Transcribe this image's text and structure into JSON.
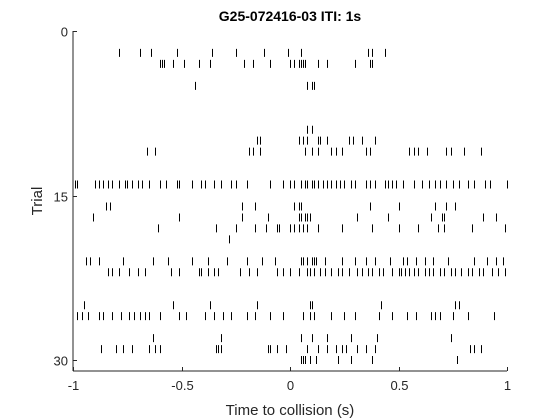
{
  "chart_data": {
    "type": "scatter",
    "subtype": "raster",
    "title": "G25-072416-03 ITI: 1s",
    "xlabel": "Time to collision (s)",
    "ylabel": "Trial",
    "xlim": [
      -1,
      1
    ],
    "ylim": [
      0,
      31
    ],
    "y_reversed": true,
    "xticks": [
      -1,
      -0.5,
      0,
      0.5,
      1
    ],
    "xtick_labels": [
      "-1",
      "-0.5",
      "0",
      "0.5",
      "1"
    ],
    "yticks": [
      0,
      15,
      30
    ],
    "ytick_labels": [
      "0",
      "15",
      "30"
    ],
    "grid": false,
    "mark_color": "#000000",
    "trials": [
      {
        "trial": 2,
        "times": [
          -0.79,
          -0.69,
          -0.64,
          -0.52,
          -0.36,
          -0.25,
          -0.12,
          -0.01,
          0.05,
          0.36,
          0.38,
          0.44
        ]
      },
      {
        "trial": 3,
        "times": [
          -0.6,
          -0.59,
          -0.58,
          -0.54,
          -0.49,
          -0.42,
          -0.37,
          -0.21,
          -0.17,
          -0.09,
          0.0,
          0.02,
          0.04,
          0.05,
          0.06,
          0.07,
          0.13,
          0.17,
          0.3,
          0.37,
          0.38
        ]
      },
      {
        "trial": 5,
        "times": [
          -0.44,
          0.08,
          0.1,
          0.11
        ]
      },
      {
        "trial": 9,
        "times": [
          0.08,
          0.1
        ]
      },
      {
        "trial": 10,
        "times": [
          -0.15,
          -0.14,
          0.04,
          0.06,
          0.08,
          0.13,
          0.14,
          0.17,
          0.27,
          0.29,
          0.33,
          0.39
        ]
      },
      {
        "trial": 11,
        "times": [
          -0.66,
          -0.62,
          -0.19,
          -0.17,
          -0.14,
          0.07,
          0.1,
          0.13,
          0.19,
          0.21,
          0.24,
          0.35,
          0.37,
          0.55,
          0.57,
          0.59,
          0.63,
          0.72,
          0.74,
          0.8,
          0.88
        ]
      },
      {
        "trial": 14,
        "times": [
          -0.99,
          -0.98,
          -0.9,
          -0.88,
          -0.86,
          -0.84,
          -0.82,
          -0.79,
          -0.76,
          -0.75,
          -0.73,
          -0.7,
          -0.68,
          -0.65,
          -0.6,
          -0.57,
          -0.52,
          -0.51,
          -0.45,
          -0.41,
          -0.39,
          -0.35,
          -0.32,
          -0.27,
          -0.25,
          -0.2,
          -0.09,
          -0.03,
          0.0,
          0.02,
          0.05,
          0.07,
          0.08,
          0.1,
          0.11,
          0.13,
          0.15,
          0.17,
          0.19,
          0.21,
          0.23,
          0.25,
          0.28,
          0.3,
          0.35,
          0.37,
          0.39,
          0.44,
          0.45,
          0.47,
          0.49,
          0.52,
          0.57,
          0.61,
          0.64,
          0.67,
          0.69,
          0.72,
          0.75,
          0.78,
          0.82,
          0.85,
          0.9,
          0.92,
          1.0
        ]
      },
      {
        "trial": 16,
        "times": [
          -0.85,
          -0.83,
          -0.22,
          -0.16,
          0.02,
          0.04,
          0.05,
          0.37,
          0.5,
          0.67,
          0.72,
          0.76
        ]
      },
      {
        "trial": 17,
        "times": [
          -0.91,
          -0.51,
          -0.22,
          -0.1,
          0.04,
          0.05,
          0.07,
          0.08,
          0.09,
          0.31,
          0.45,
          0.65,
          0.7,
          0.71,
          0.89,
          0.95
        ]
      },
      {
        "trial": 18,
        "times": [
          -0.61,
          -0.34,
          -0.25,
          -0.16,
          -0.11,
          -0.06,
          -0.05,
          0.0,
          0.02,
          0.04,
          0.06,
          0.08,
          0.13,
          0.24,
          0.38,
          0.5,
          0.59,
          0.68,
          0.71,
          0.84,
          0.99
        ]
      },
      {
        "trial": 19,
        "times": [
          -0.28
        ]
      },
      {
        "trial": 21,
        "times": [
          -0.94,
          -0.92,
          -0.88,
          -0.77,
          -0.63,
          -0.56,
          -0.45,
          -0.38,
          -0.29,
          -0.2,
          -0.13,
          -0.07,
          0.05,
          0.06,
          0.08,
          0.1,
          0.11,
          0.12,
          0.16,
          0.24,
          0.3,
          0.35,
          0.39,
          0.46,
          0.52,
          0.54,
          0.58,
          0.62,
          0.66,
          0.73,
          0.85,
          0.91,
          0.95,
          0.98
        ]
      },
      {
        "trial": 22,
        "times": [
          -0.84,
          -0.82,
          -0.79,
          -0.74,
          -0.7,
          -0.67,
          -0.55,
          -0.51,
          -0.42,
          -0.41,
          -0.38,
          -0.35,
          -0.33,
          -0.23,
          -0.19,
          -0.15,
          -0.06,
          -0.03,
          0.0,
          0.04,
          0.08,
          0.09,
          0.11,
          0.14,
          0.16,
          0.19,
          0.22,
          0.24,
          0.27,
          0.31,
          0.33,
          0.36,
          0.38,
          0.41,
          0.43,
          0.47,
          0.5,
          0.51,
          0.53,
          0.55,
          0.57,
          0.59,
          0.62,
          0.64,
          0.66,
          0.69,
          0.71,
          0.74,
          0.76,
          0.79,
          0.82,
          0.84,
          0.87,
          0.89,
          0.93,
          0.96,
          0.99
        ]
      },
      {
        "trial": 25,
        "times": [
          -0.95,
          -0.54,
          -0.37,
          -0.15,
          0.09,
          0.1,
          0.42,
          0.76,
          0.78
        ]
      },
      {
        "trial": 26,
        "times": [
          -0.98,
          -0.96,
          -0.93,
          -0.88,
          -0.86,
          -0.82,
          -0.78,
          -0.74,
          -0.72,
          -0.69,
          -0.67,
          -0.65,
          -0.6,
          -0.51,
          -0.48,
          -0.39,
          -0.35,
          -0.31,
          -0.27,
          -0.2,
          -0.16,
          -0.09,
          -0.03,
          0.06,
          0.09,
          0.11,
          0.19,
          0.25,
          0.3,
          0.41,
          0.47,
          0.54,
          0.58,
          0.65,
          0.67,
          0.69,
          0.75,
          0.82,
          0.94
        ]
      },
      {
        "trial": 28,
        "times": [
          -0.63,
          -0.32,
          0.05,
          0.1,
          0.17,
          0.28,
          0.4,
          0.74
        ]
      },
      {
        "trial": 29,
        "times": [
          -0.87,
          -0.8,
          -0.77,
          -0.73,
          -0.65,
          -0.62,
          -0.6,
          -0.34,
          -0.33,
          -0.32,
          -0.1,
          -0.09,
          -0.06,
          -0.02,
          0.08,
          0.13,
          0.17,
          0.21,
          0.24,
          0.26,
          0.31,
          0.35,
          0.39,
          0.83,
          0.85,
          0.88
        ]
      },
      {
        "trial": 30,
        "times": [
          0.05,
          0.06,
          0.07,
          0.09,
          0.12,
          0.22,
          0.28,
          0.38,
          0.77
        ]
      }
    ]
  }
}
